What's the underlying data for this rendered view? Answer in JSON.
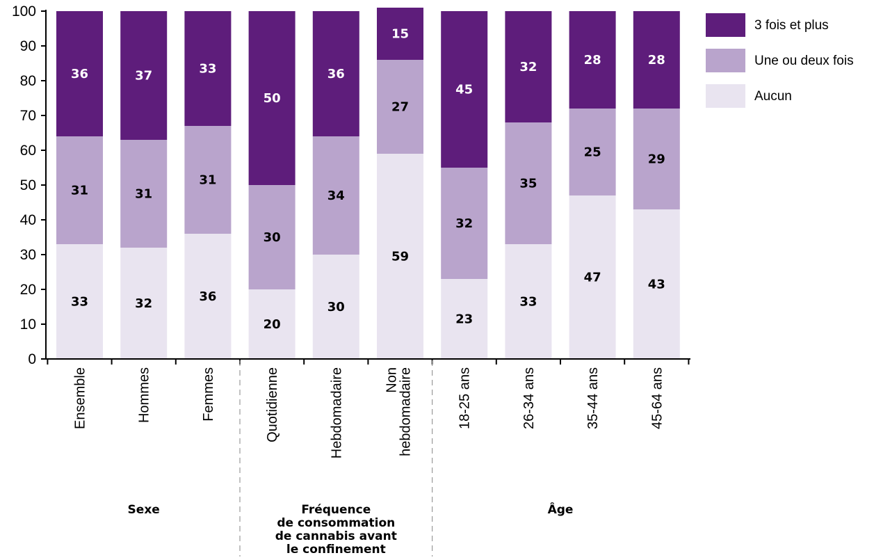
{
  "chart_data": {
    "type": "bar",
    "stacked": true,
    "categories": [
      "Ensemble",
      "Hommes",
      "Femmes",
      "Quotidienne",
      "Hebdomadaire",
      "Non hebdomadaire",
      "18-25 ans",
      "26-34 ans",
      "35-44 ans",
      "45-64 ans"
    ],
    "series": [
      {
        "name": "Aucun",
        "color": "#e9e4f0",
        "values": [
          33,
          32,
          36,
          20,
          30,
          59,
          23,
          33,
          47,
          43
        ]
      },
      {
        "name": "Une ou deux fois",
        "color": "#b9a4cc",
        "values": [
          31,
          31,
          31,
          30,
          34,
          27,
          32,
          35,
          25,
          29
        ]
      },
      {
        "name": "3 fois et plus",
        "color": "#5e1d7b",
        "values": [
          36,
          37,
          33,
          50,
          36,
          15,
          45,
          32,
          28,
          28
        ]
      }
    ],
    "groups": [
      {
        "label": "Sexe",
        "categories": [
          "Ensemble",
          "Hommes",
          "Femmes"
        ]
      },
      {
        "label": "Fréquence de consommation de cannabis avant le confinement",
        "lines": [
          "Fréquence",
          "de consommation",
          "de cannabis avant",
          "le confinement"
        ],
        "categories": [
          "Quotidienne",
          "Hebdomadaire",
          "Non hebdomadaire"
        ]
      },
      {
        "label": "Âge",
        "categories": [
          "18-25 ans",
          "26-34 ans",
          "35-44 ans",
          "45-64 ans"
        ]
      }
    ],
    "ylim": [
      0,
      100
    ],
    "yticks": [
      0,
      10,
      20,
      30,
      40,
      50,
      60,
      70,
      80,
      90,
      100
    ],
    "legend": {
      "placement": "top-right",
      "entries": [
        "3 fois et plus",
        "Une ou deux fois",
        "Aucun"
      ]
    },
    "grid": false,
    "title": "",
    "xlabel": "",
    "ylabel": ""
  }
}
